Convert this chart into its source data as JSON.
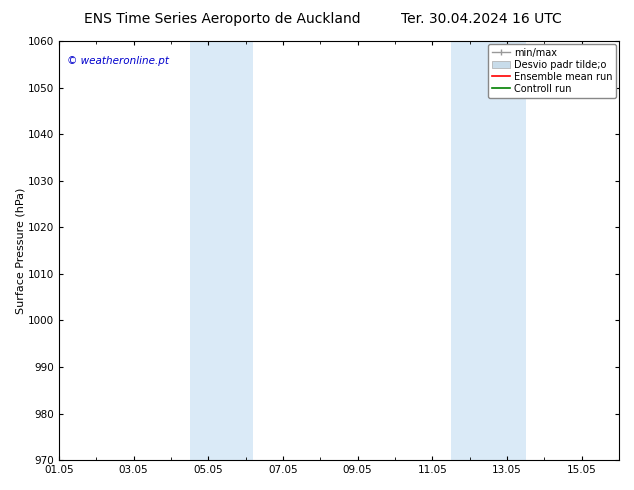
{
  "title_left": "ENS Time Series Aeroporto de Auckland",
  "title_right": "Ter. 30.04.2024 16 UTC",
  "ylabel": "Surface Pressure (hPa)",
  "ylim": [
    970,
    1060
  ],
  "yticks": [
    970,
    980,
    990,
    1000,
    1010,
    1020,
    1030,
    1040,
    1050,
    1060
  ],
  "xtick_labels": [
    "01.05",
    "03.05",
    "05.05",
    "07.05",
    "09.05",
    "11.05",
    "13.05",
    "15.05"
  ],
  "xtick_positions": [
    0,
    2,
    4,
    6,
    8,
    10,
    12,
    14
  ],
  "xlim": [
    0,
    15
  ],
  "watermark": "© weatheronline.pt",
  "watermark_color": "#0000cc",
  "bg_color": "#ffffff",
  "plot_bg_color": "#ffffff",
  "shaded_regions": [
    {
      "x_start": 3.5,
      "x_end": 5.2,
      "color": "#daeaf7"
    },
    {
      "x_start": 10.5,
      "x_end": 12.5,
      "color": "#daeaf7"
    }
  ],
  "legend_entries": [
    {
      "label": "min/max",
      "color": "#aaaaaa"
    },
    {
      "label": "Desvio padr tilde;o",
      "color": "#c8dcea"
    },
    {
      "label": "Ensemble mean run",
      "color": "#ff0000"
    },
    {
      "label": "Controll run",
      "color": "#008000"
    }
  ],
  "title_fontsize": 10,
  "label_fontsize": 8,
  "tick_fontsize": 7.5,
  "legend_fontsize": 7,
  "watermark_fontsize": 7.5
}
